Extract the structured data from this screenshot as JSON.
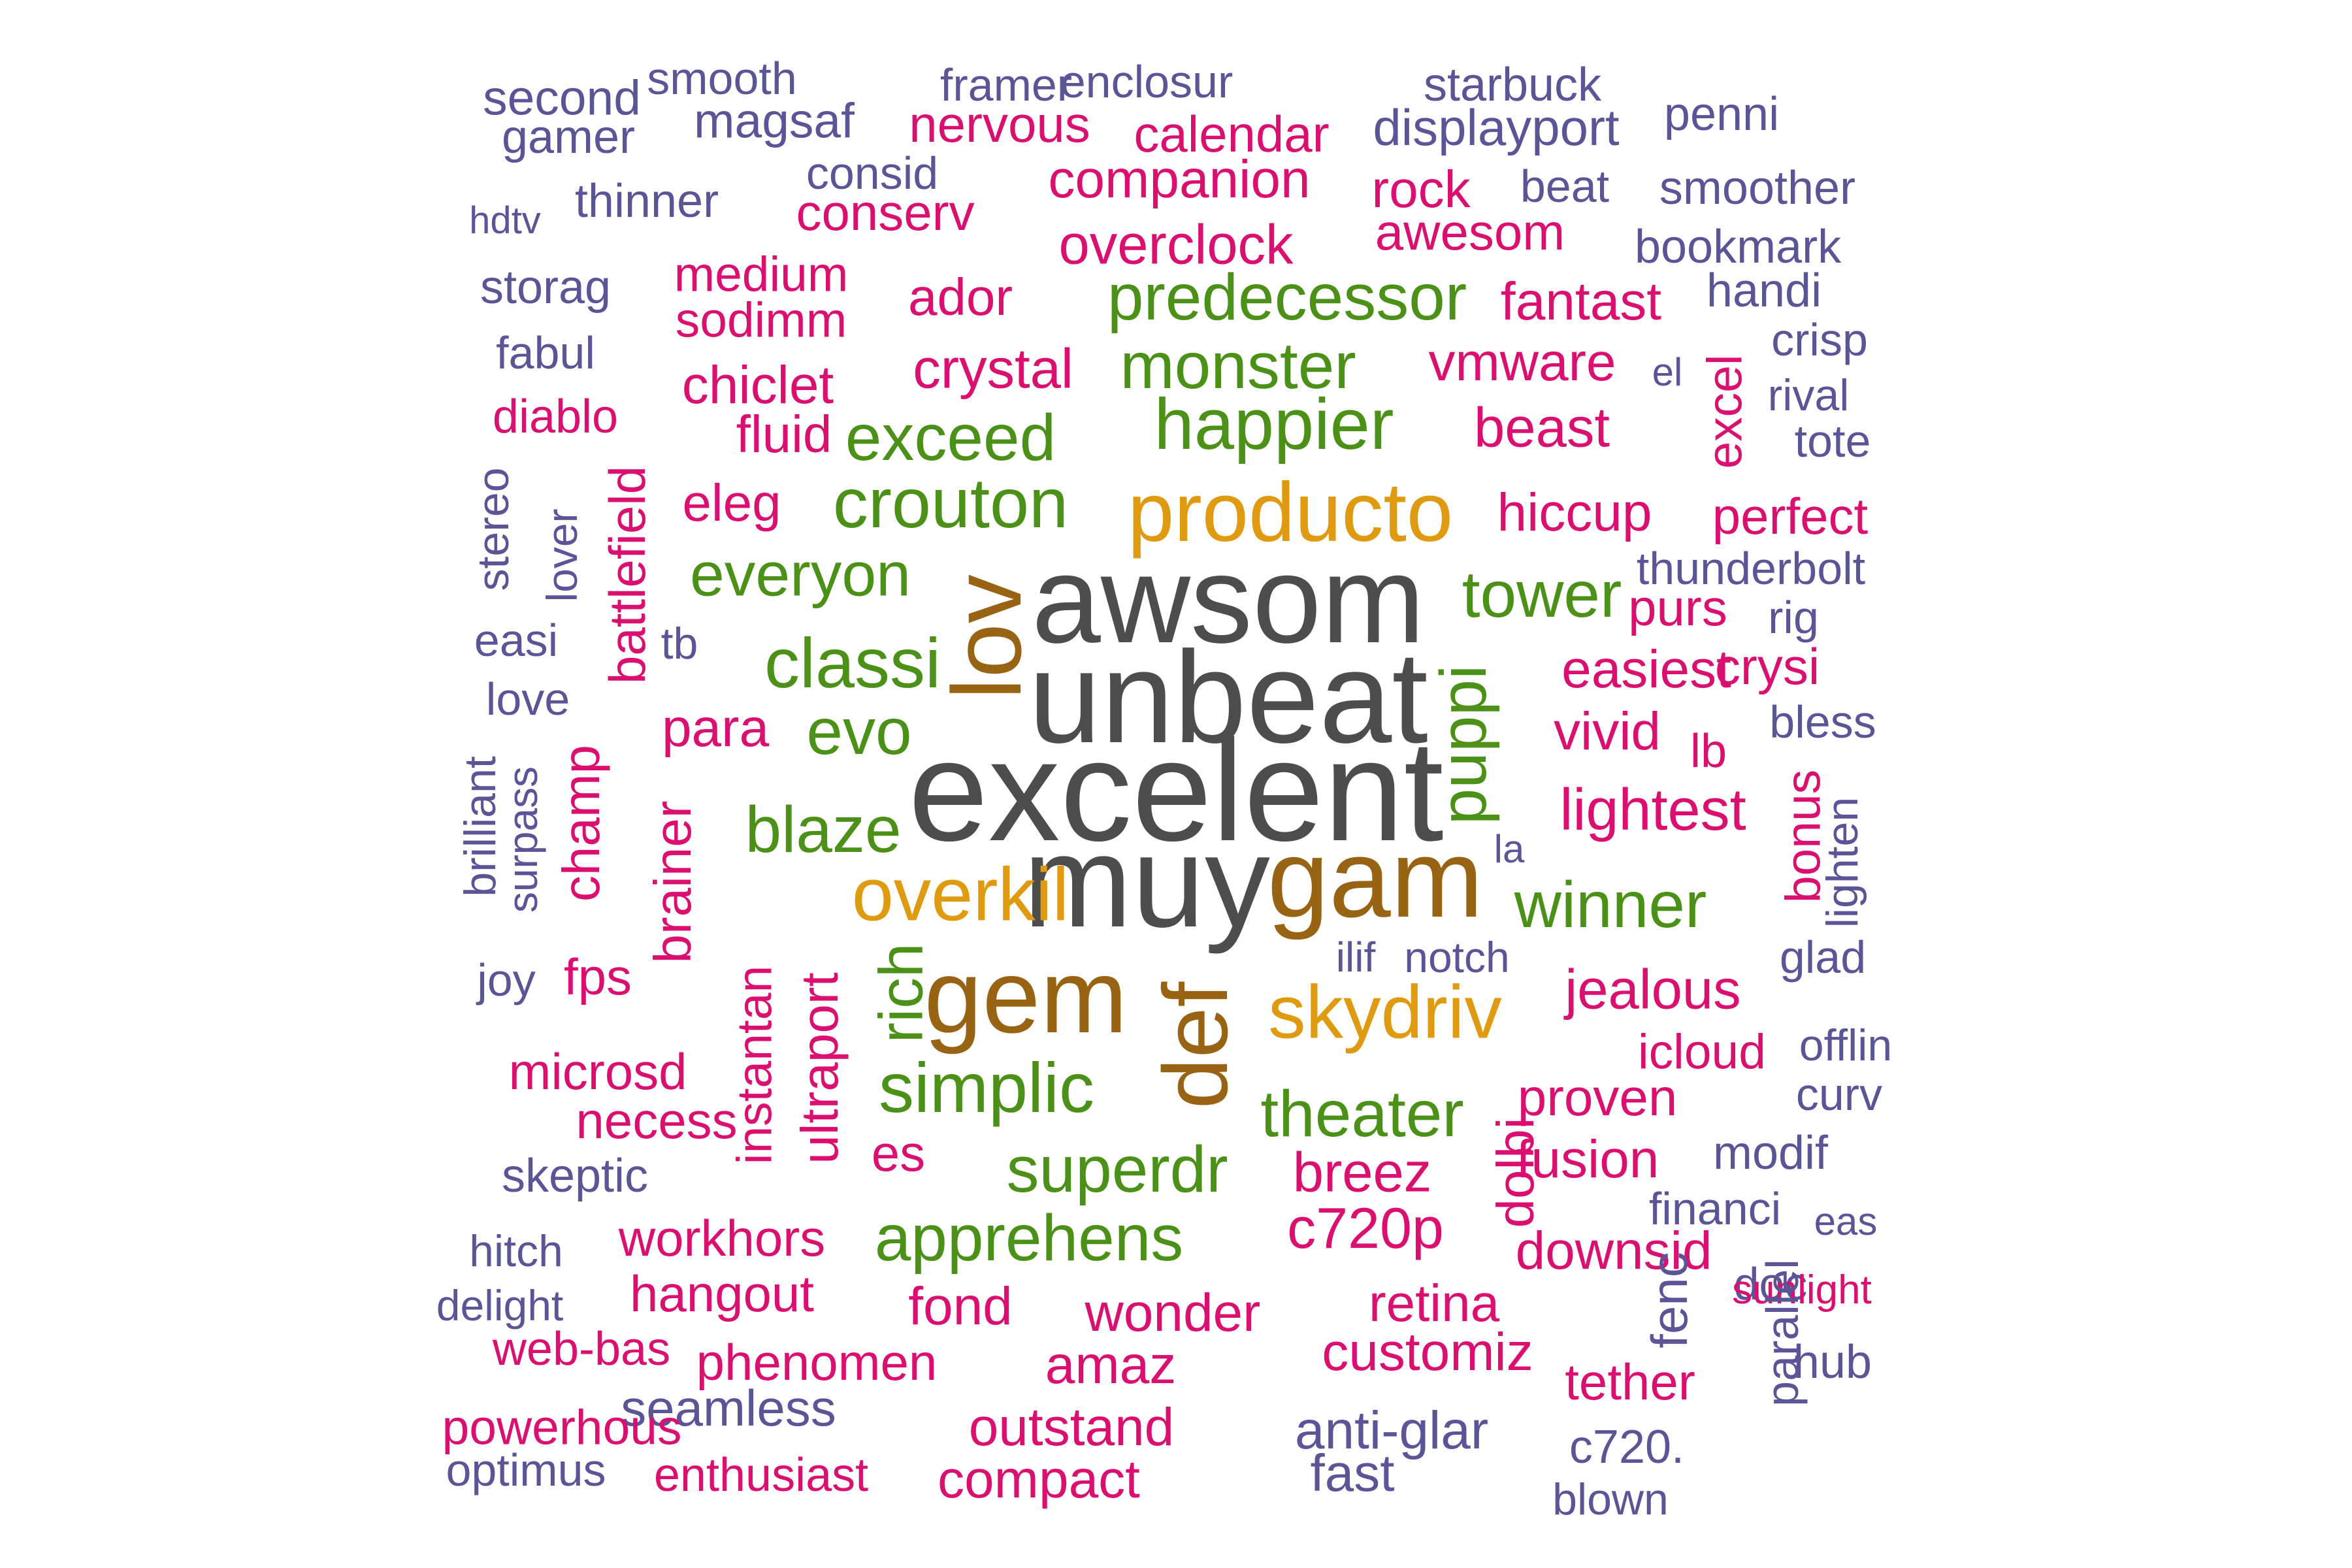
{
  "palette": {
    "gray": "#4d4d4d",
    "brown": "#986414",
    "orange": "#df9a0f",
    "green": "#4b9118",
    "magenta": "#db0f70",
    "purple": "#5a5597"
  },
  "words": [
    {
      "t": "excelent",
      "c": "gray",
      "s": 2.2
    },
    {
      "t": "unbeat",
      "c": "gray",
      "s": 2.2
    },
    {
      "t": "awsom",
      "c": "gray",
      "s": 2.2
    },
    {
      "t": "muy",
      "c": "gray",
      "s": 2.2
    },
    {
      "t": "gam",
      "c": "brown",
      "s": 2.0
    },
    {
      "t": "gem",
      "c": "brown",
      "s": 2.0
    },
    {
      "t": "lov",
      "c": "brown",
      "s": 2.0,
      "v": true
    },
    {
      "t": "def",
      "c": "brown",
      "s": 2.0,
      "v": true
    },
    {
      "t": "producto",
      "c": "orange",
      "s": 1.6
    },
    {
      "t": "skydriv",
      "c": "orange",
      "s": 1.6
    },
    {
      "t": "overkil",
      "c": "orange",
      "s": 1.6
    },
    {
      "t": "happier",
      "c": "green",
      "s": 1.45
    },
    {
      "t": "crouton",
      "c": "green",
      "s": 1.45
    },
    {
      "t": "classi",
      "c": "green",
      "s": 1.45
    },
    {
      "t": "simplic",
      "c": "green",
      "s": 1.45
    },
    {
      "t": "predecessor",
      "c": "green",
      "s": 1.45
    },
    {
      "t": "monster",
      "c": "green",
      "s": 1.45
    },
    {
      "t": "exceed",
      "c": "green",
      "s": 1.45
    },
    {
      "t": "blaze",
      "c": "green",
      "s": 1.45
    },
    {
      "t": "superdr",
      "c": "green",
      "s": 1.45
    },
    {
      "t": "apprehens",
      "c": "green",
      "s": 1.45
    },
    {
      "t": "theater",
      "c": "green",
      "s": 1.45
    },
    {
      "t": "tower",
      "c": "green",
      "s": 1.45
    },
    {
      "t": "everyon",
      "c": "green",
      "s": 1.45
    },
    {
      "t": "evo",
      "c": "green",
      "s": 1.45
    },
    {
      "t": "winner",
      "c": "green",
      "s": 1.45
    },
    {
      "t": "puppi",
      "c": "green",
      "s": 1.45,
      "v": true
    },
    {
      "t": "rich",
      "c": "green",
      "s": 1.45,
      "v": true
    },
    {
      "t": "smooth",
      "c": "purple",
      "s": 1.0
    },
    {
      "t": "framer",
      "c": "purple",
      "s": 1.0
    },
    {
      "t": "enclosur",
      "c": "purple",
      "s": 1.0
    },
    {
      "t": "starbuck",
      "c": "purple",
      "s": 1.0
    },
    {
      "t": "second",
      "c": "purple",
      "s": 1.0
    },
    {
      "t": "magsaf",
      "c": "purple",
      "s": 1.0
    },
    {
      "t": "nervous",
      "c": "magenta",
      "s": 1.15
    },
    {
      "t": "calendar",
      "c": "magenta",
      "s": 1.15
    },
    {
      "t": "displayport",
      "c": "purple",
      "s": 1.0
    },
    {
      "t": "penni",
      "c": "purple",
      "s": 1.0
    },
    {
      "t": "gamer",
      "c": "purple",
      "s": 1.0
    },
    {
      "t": "consid",
      "c": "purple",
      "s": 1.0
    },
    {
      "t": "companion",
      "c": "magenta",
      "s": 1.15
    },
    {
      "t": "hdtv",
      "c": "purple",
      "s": 0.9
    },
    {
      "t": "thinner",
      "c": "purple",
      "s": 1.0
    },
    {
      "t": "conserv",
      "c": "magenta",
      "s": 1.15
    },
    {
      "t": "rock",
      "c": "magenta",
      "s": 1.15
    },
    {
      "t": "beat",
      "c": "purple",
      "s": 1.0
    },
    {
      "t": "smoother",
      "c": "purple",
      "s": 1.0
    },
    {
      "t": "awesom",
      "c": "magenta",
      "s": 1.15
    },
    {
      "t": "overclock",
      "c": "magenta",
      "s": 1.15
    },
    {
      "t": "bookmark",
      "c": "purple",
      "s": 1.0
    },
    {
      "t": "medium",
      "c": "magenta",
      "s": 1.15
    },
    {
      "t": "storag",
      "c": "purple",
      "s": 1.0
    },
    {
      "t": "ador",
      "c": "magenta",
      "s": 1.15
    },
    {
      "t": "handi",
      "c": "purple",
      "s": 1.0
    },
    {
      "t": "fantast",
      "c": "magenta",
      "s": 1.15
    },
    {
      "t": "sodimm",
      "c": "magenta",
      "s": 1.15
    },
    {
      "t": "crisp",
      "c": "purple",
      "s": 1.0
    },
    {
      "t": "fabul",
      "c": "purple",
      "s": 1.0
    },
    {
      "t": "crystal",
      "c": "magenta",
      "s": 1.15
    },
    {
      "t": "vmware",
      "c": "magenta",
      "s": 1.15
    },
    {
      "t": "el",
      "c": "purple",
      "s": 0.9
    },
    {
      "t": "excel",
      "c": "magenta",
      "s": 1.15,
      "v": true
    },
    {
      "t": "chiclet",
      "c": "magenta",
      "s": 1.15
    },
    {
      "t": "rival",
      "c": "purple",
      "s": 1.0
    },
    {
      "t": "diablo",
      "c": "magenta",
      "s": 1.15
    },
    {
      "t": "fluid",
      "c": "magenta",
      "s": 1.15
    },
    {
      "t": "beast",
      "c": "magenta",
      "s": 1.15
    },
    {
      "t": "tote",
      "c": "purple",
      "s": 1.0
    },
    {
      "t": "eleg",
      "c": "magenta",
      "s": 1.15
    },
    {
      "t": "hiccup",
      "c": "magenta",
      "s": 1.15
    },
    {
      "t": "perfect",
      "c": "magenta",
      "s": 1.15
    },
    {
      "t": "stereo",
      "c": "purple",
      "s": 1.0,
      "v": true
    },
    {
      "t": "lover",
      "c": "purple",
      "s": 1.0,
      "v": true
    },
    {
      "t": "battlefield",
      "c": "magenta",
      "s": 1.15,
      "v": true
    },
    {
      "t": "thunderbolt",
      "c": "purple",
      "s": 1.0
    },
    {
      "t": "purs",
      "c": "magenta",
      "s": 1.15
    },
    {
      "t": "rig",
      "c": "purple",
      "s": 1.0
    },
    {
      "t": "easi",
      "c": "purple",
      "s": 1.0
    },
    {
      "t": "tb",
      "c": "purple",
      "s": 0.9
    },
    {
      "t": "easiest",
      "c": "magenta",
      "s": 1.15
    },
    {
      "t": "crysi",
      "c": "magenta",
      "s": 1.15
    },
    {
      "t": "love",
      "c": "purple",
      "s": 1.0
    },
    {
      "t": "para",
      "c": "magenta",
      "s": 1.15
    },
    {
      "t": "vivid",
      "c": "magenta",
      "s": 1.15
    },
    {
      "t": "bless",
      "c": "purple",
      "s": 1.0
    },
    {
      "t": "lb",
      "c": "magenta",
      "s": 1.15
    },
    {
      "t": "brilliant",
      "c": "purple",
      "s": 1.0,
      "v": true
    },
    {
      "t": "surpass",
      "c": "purple",
      "s": 1.0,
      "v": true
    },
    {
      "t": "champ",
      "c": "magenta",
      "s": 1.15,
      "v": true
    },
    {
      "t": "lightest",
      "c": "magenta",
      "s": 1.15
    },
    {
      "t": "bonus",
      "c": "magenta",
      "s": 1.15,
      "v": true
    },
    {
      "t": "lighten",
      "c": "purple",
      "s": 1.0,
      "v": true
    },
    {
      "t": "brainer",
      "c": "magenta",
      "s": 1.15,
      "v": true
    },
    {
      "t": "la",
      "c": "purple",
      "s": 0.9
    },
    {
      "t": "joy",
      "c": "purple",
      "s": 1.0
    },
    {
      "t": "fps",
      "c": "magenta",
      "s": 1.15
    },
    {
      "t": "instantan",
      "c": "magenta",
      "s": 1.15,
      "v": true
    },
    {
      "t": "ultraport",
      "c": "magenta",
      "s": 1.15,
      "v": true
    },
    {
      "t": "ilif",
      "c": "purple",
      "s": 0.9
    },
    {
      "t": "notch",
      "c": "purple",
      "s": 0.9
    },
    {
      "t": "glad",
      "c": "purple",
      "s": 1.0
    },
    {
      "t": "jealous",
      "c": "magenta",
      "s": 1.15
    },
    {
      "t": "icloud",
      "c": "magenta",
      "s": 1.15
    },
    {
      "t": "offlin",
      "c": "purple",
      "s": 1.0
    },
    {
      "t": "microsd",
      "c": "magenta",
      "s": 1.15
    },
    {
      "t": "necess",
      "c": "magenta",
      "s": 1.15
    },
    {
      "t": "proven",
      "c": "magenta",
      "s": 1.15
    },
    {
      "t": "curv",
      "c": "purple",
      "s": 1.0
    },
    {
      "t": "es",
      "c": "magenta",
      "s": 1.15
    },
    {
      "t": "skeptic",
      "c": "purple",
      "s": 1.0
    },
    {
      "t": "breez",
      "c": "magenta",
      "s": 1.15
    },
    {
      "t": "dolbi",
      "c": "magenta",
      "s": 1.15,
      "v": true
    },
    {
      "t": "fusion",
      "c": "magenta",
      "s": 1.15
    },
    {
      "t": "modif",
      "c": "purple",
      "s": 1.0
    },
    {
      "t": "financi",
      "c": "purple",
      "s": 1.0
    },
    {
      "t": "eas",
      "c": "purple",
      "s": 0.9
    },
    {
      "t": "hitch",
      "c": "purple",
      "s": 1.0
    },
    {
      "t": "workhors",
      "c": "magenta",
      "s": 1.15
    },
    {
      "t": "c720p",
      "c": "magenta",
      "s": 1.15
    },
    {
      "t": "downsid",
      "c": "magenta",
      "s": 1.15
    },
    {
      "t": "doc",
      "c": "purple",
      "s": 0.9
    },
    {
      "t": "sunlight",
      "c": "magenta",
      "s": 1.15
    },
    {
      "t": "hangout",
      "c": "magenta",
      "s": 1.15
    },
    {
      "t": "fond",
      "c": "magenta",
      "s": 1.15
    },
    {
      "t": "wonder",
      "c": "magenta",
      "s": 1.15
    },
    {
      "t": "retina",
      "c": "magenta",
      "s": 1.15
    },
    {
      "t": "fenc",
      "c": "purple",
      "s": 1.0,
      "v": true
    },
    {
      "t": "parallel",
      "c": "purple",
      "s": 1.0,
      "v": true
    },
    {
      "t": "hub",
      "c": "purple",
      "s": 1.0
    },
    {
      "t": "delight",
      "c": "purple",
      "s": 1.0
    },
    {
      "t": "web-bas",
      "c": "magenta",
      "s": 1.15
    },
    {
      "t": "phenomen",
      "c": "magenta",
      "s": 1.15
    },
    {
      "t": "amaz",
      "c": "magenta",
      "s": 1.15
    },
    {
      "t": "customiz",
      "c": "magenta",
      "s": 1.15
    },
    {
      "t": "tether",
      "c": "magenta",
      "s": 1.15
    },
    {
      "t": "seamless",
      "c": "purple",
      "s": 1.0
    },
    {
      "t": "powerhous",
      "c": "magenta",
      "s": 1.15
    },
    {
      "t": "outstand",
      "c": "magenta",
      "s": 1.15
    },
    {
      "t": "anti-glar",
      "c": "purple",
      "s": 1.0
    },
    {
      "t": "c720.",
      "c": "purple",
      "s": 1.0
    },
    {
      "t": "optimus",
      "c": "purple",
      "s": 1.0
    },
    {
      "t": "enthusiast",
      "c": "magenta",
      "s": 1.15
    },
    {
      "t": "compact",
      "c": "magenta",
      "s": 1.15
    },
    {
      "t": "fast",
      "c": "purple",
      "s": 0.9
    },
    {
      "t": "blown",
      "c": "purple",
      "s": 1.0
    }
  ]
}
